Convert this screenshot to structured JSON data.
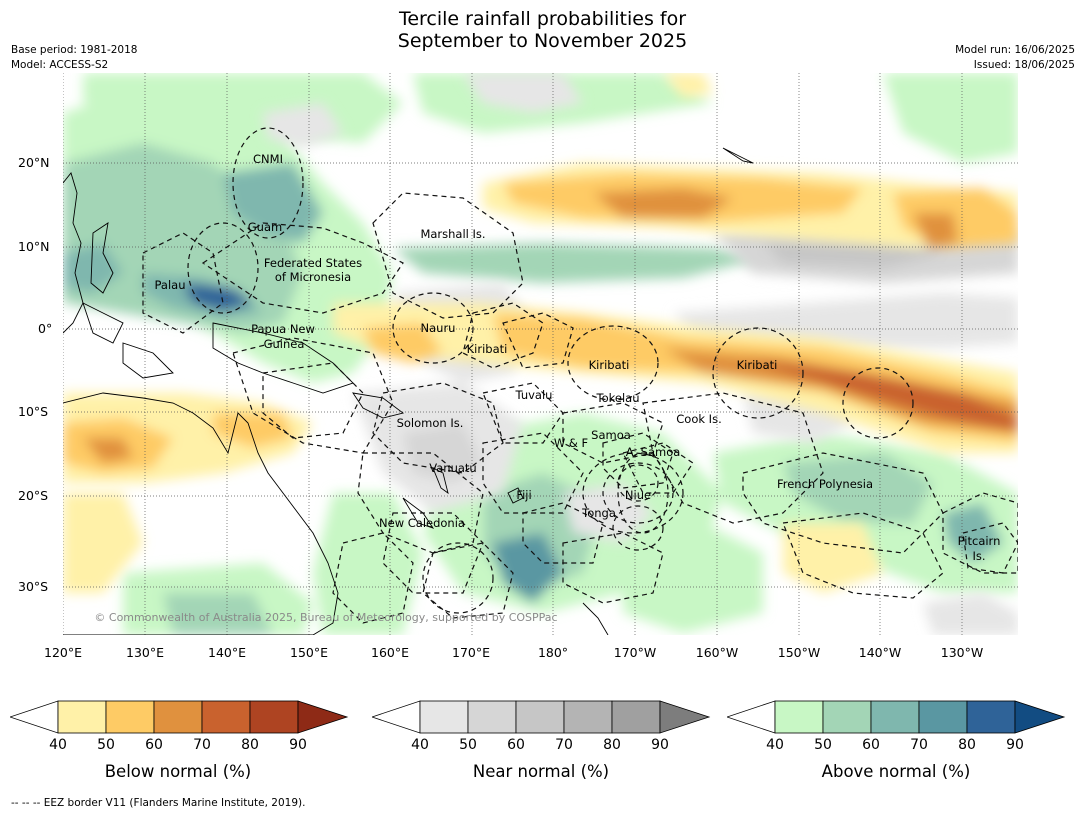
{
  "title_line1": "Tercile rainfall probabilities for",
  "title_line2": "September to November 2025",
  "base_period": "Base period: 1981-2018",
  "model": "Model: ACCESS-S2",
  "model_run": "Model run: 16/06/2025",
  "issued": "Issued: 18/06/2025",
  "copyright": "© Commonwealth of Australia 2025, Bureau of Meteorology, supported by COSPPac",
  "footer": "--  --  -- EEZ border V11 (Flanders Marine Institute, 2019).",
  "map": {
    "lon_ticks": [
      "120°E",
      "130°E",
      "140°E",
      "150°E",
      "160°E",
      "170°E",
      "180°",
      "170°W",
      "160°W",
      "150°W",
      "140°W",
      "130°W"
    ],
    "lat_ticks": [
      "20°N",
      "10°N",
      "0°",
      "10°S",
      "20°S",
      "30°S"
    ],
    "eez_labels": [
      {
        "name": "CNMI"
      },
      {
        "name": "Guam"
      },
      {
        "name": "Marshall Is."
      },
      {
        "name": "Federated States"
      },
      {
        "name": "of Micronesia"
      },
      {
        "name": "Palau"
      },
      {
        "name": "Papua New"
      },
      {
        "name": "Guinea"
      },
      {
        "name": "Nauru"
      },
      {
        "name": "Kiribati"
      },
      {
        "name": "Kiribati"
      },
      {
        "name": "Kiribati"
      },
      {
        "name": "Tuvalu"
      },
      {
        "name": "Tokelau"
      },
      {
        "name": "Solomon Is."
      },
      {
        "name": "Cook Is."
      },
      {
        "name": "Samoa"
      },
      {
        "name": "W & F"
      },
      {
        "name": "A. Samoa"
      },
      {
        "name": "Vanuatu"
      },
      {
        "name": "Fiji"
      },
      {
        "name": "Niue"
      },
      {
        "name": "French Polynesia"
      },
      {
        "name": "Tonga"
      },
      {
        "name": "New Caledonia"
      },
      {
        "name": "Pitcairn"
      },
      {
        "name": "Is."
      }
    ]
  },
  "colorbars": [
    {
      "label": "Below normal (%)",
      "ticks": [
        "40",
        "50",
        "60",
        "70",
        "80",
        "90"
      ],
      "colors": [
        "#fff1a8",
        "#fecb65",
        "#e0913e",
        "#c9622e",
        "#ae4422",
        "#8e2a16"
      ]
    },
    {
      "label": "Near normal (%)",
      "ticks": [
        "40",
        "50",
        "60",
        "70",
        "80",
        "90"
      ],
      "colors": [
        "#e6e6e6",
        "#d6d6d6",
        "#c6c6c6",
        "#b4b4b4",
        "#a0a0a0",
        "#7d7d7d"
      ]
    },
    {
      "label": "Above normal (%)",
      "ticks": [
        "40",
        "50",
        "60",
        "70",
        "80",
        "90"
      ],
      "colors": [
        "#c8f7c5",
        "#a3d5b6",
        "#7fb7ae",
        "#5a97a2",
        "#2f6398",
        "#124c82"
      ]
    }
  ]
}
